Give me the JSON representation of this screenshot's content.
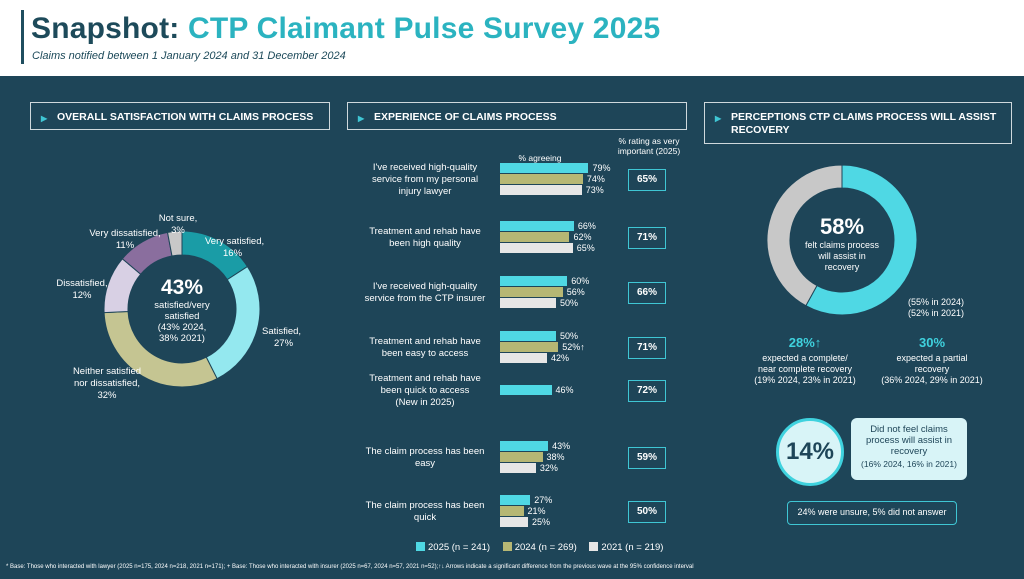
{
  "header": {
    "title_prefix": "Snapshot:",
    "title_main": "CTP Claimant Pulse Survey 2025",
    "subtitle": "Claims notified between 1 January 2024 and 31 December 2024"
  },
  "colors": {
    "teal": "#1a9ca6",
    "light_teal": "#94e8ef",
    "olive": "#c5c592",
    "lavender": "#d8d0e4",
    "purple": "#8a6e9e",
    "grey": "#c8c8c8",
    "bar_2025": "#4fd8e4",
    "bar_2024": "#b6b774",
    "bar_2021": "#e6e6e6"
  },
  "panel1": {
    "title": "OVERALL SATISFACTION WITH CLAIMS PROCESS",
    "center": {
      "big": "43%",
      "line1": "satisfied/very",
      "line2": "satisfied",
      "line3": "(43% 2024,",
      "line4": "38% 2021)"
    },
    "labels": {
      "very_satisfied": "Very satisfied,",
      "very_satisfied_val": "16%",
      "satisfied": "Satisfied,",
      "satisfied_val": "27%",
      "neither_1": "Neither satisfied",
      "neither_2": "nor dissatisfied,",
      "neither_val": "32%",
      "dissatisfied": "Dissatisfied,",
      "dissatisfied_val": "12%",
      "very_dissatisfied": "Very dissatisfied,",
      "very_dissatisfied_val": "11%",
      "not_sure": "Not sure,",
      "not_sure_val": "3%"
    }
  },
  "panel2": {
    "title": "EXPERIENCE OF CLAIMS PROCESS",
    "col_agree": "% agreeing",
    "col_imp_1": "% rating as very",
    "col_imp_2": "important (2025)",
    "rows": [
      {
        "q1": "I've received high-quality",
        "q2": "service from my personal",
        "q3": "injury lawyer",
        "v25": "79%",
        "v24": "74%",
        "v21": "73%",
        "imp": "65%"
      },
      {
        "q1": "Treatment and rehab have",
        "q2": "been high quality",
        "q3": "",
        "v25": "66%",
        "v24": "62%",
        "v21": "65%",
        "imp": "71%"
      },
      {
        "q1": "I've received high-quality",
        "q2": "service from the CTP insurer",
        "q3": "",
        "v25": "60%",
        "v24": "56%",
        "v21": "50%",
        "imp": "66%"
      },
      {
        "q1": "Treatment and rehab have",
        "q2": "been easy to access",
        "q3": "",
        "v25": "50%",
        "v24": "52%↑",
        "v21": "42%",
        "imp": "71%"
      },
      {
        "q1": "Treatment and rehab have",
        "q2": "been quick to access",
        "q3": "(New in 2025)",
        "v25": "46%",
        "imp": "72%"
      },
      {
        "q1": "The claim process has been",
        "q2": "easy",
        "q3": "",
        "v25": "43%",
        "v24": "38%",
        "v21": "32%",
        "imp": "59%"
      },
      {
        "q1": "The claim process has been",
        "q2": "quick",
        "q3": "",
        "v25": "27%",
        "v24": "21%",
        "v21": "25%",
        "imp": "50%"
      }
    ],
    "legend": {
      "s25": "2025 (n = 241)",
      "s24": "2024 (n = 269)",
      "s21": "2021 (n = 219)"
    }
  },
  "panel3": {
    "title_1": "PERCEPTIONS CTP CLAIMS PROCESS WILL ASSIST",
    "title_2": "RECOVERY",
    "center": {
      "big": "58%",
      "line1": "felt claims process",
      "line2": "will assist in",
      "line3": "recovery"
    },
    "prev_1": "(55% in 2024)",
    "prev_2": "(52% in 2021)",
    "complete": {
      "big": "28%↑",
      "l1": "expected a complete/",
      "l2": "near complete recovery",
      "l3": "(19% 2024, 23% in 2021)"
    },
    "partial": {
      "big": "30%",
      "l1": "expected a partial",
      "l2": "recovery",
      "l3": "(36% 2024, 29% in 2021)"
    },
    "not_assist": {
      "big": "14%",
      "l1": "Did not feel claims",
      "l2": "process will assist in",
      "l3": "recovery",
      "l4": "(16% 2024, 16% in 2021)"
    },
    "unsure": "24% were unsure, 5% did not answer"
  },
  "footer": "* Base: Those who interacted with lawyer (2025 n=175, 2024 n=218, 2021 n=171); + Base: Those who interacted with insurer (2025 n=67, 2024 n=57, 2021 n=52);↑↓ Arrows indicate a significant difference from the previous wave at the 95% confidence interval",
  "chart_data": [
    {
      "type": "pie",
      "title": "OVERALL SATISFACTION WITH CLAIMS PROCESS",
      "categories": [
        "Very satisfied",
        "Satisfied",
        "Neither satisfied nor dissatisfied",
        "Dissatisfied",
        "Very dissatisfied",
        "Not sure"
      ],
      "values": [
        16,
        27,
        32,
        12,
        11,
        3
      ]
    },
    {
      "type": "bar",
      "title": "EXPERIENCE OF CLAIMS PROCESS",
      "categories": [
        "lawyer service",
        "rehab high quality",
        "insurer service",
        "rehab easy",
        "rehab quick",
        "process easy",
        "process quick"
      ],
      "series": [
        {
          "name": "2025 (n = 241)",
          "values": [
            79,
            66,
            60,
            50,
            46,
            43,
            27
          ]
        },
        {
          "name": "2024 (n = 269)",
          "values": [
            74,
            62,
            56,
            52,
            null,
            38,
            21
          ]
        },
        {
          "name": "2021 (n = 219)",
          "values": [
            73,
            65,
            50,
            42,
            null,
            32,
            25
          ]
        }
      ],
      "importance_2025": [
        65,
        71,
        66,
        71,
        72,
        59,
        50
      ],
      "xlim": [
        0,
        100
      ]
    },
    {
      "type": "pie",
      "title": "PERCEPTIONS CTP CLAIMS PROCESS WILL ASSIST RECOVERY",
      "categories": [
        "Assist",
        "Other"
      ],
      "values": [
        58,
        42
      ]
    }
  ]
}
